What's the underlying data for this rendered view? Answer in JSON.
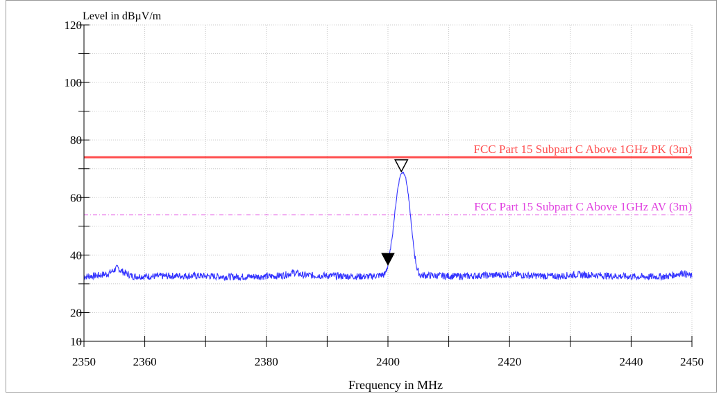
{
  "chart_data": {
    "type": "line",
    "title": "",
    "ylabel": "Level in dBµV/m",
    "xlabel": "Frequency in MHz",
    "xlim": [
      2350,
      2450
    ],
    "ylim": [
      10,
      120
    ],
    "x_ticks_major": [
      2350,
      2360,
      2380,
      2400,
      2420,
      2440,
      2450
    ],
    "x_ticks_minor": [
      2370,
      2390,
      2410,
      2430
    ],
    "y_ticks_labeled": [
      10,
      20,
      40,
      60,
      80,
      100,
      120
    ],
    "y_ticks_unlabeled": [
      30,
      50,
      70,
      90,
      110
    ],
    "grid": true,
    "limit_lines": [
      {
        "name": "FCC Part 15 Subpart C Above 1GHz  PK (3m)",
        "value": 74,
        "color": "#ff4d4d",
        "style": "solid"
      },
      {
        "name": "FCC Part 15 Subpart C Above 1GHz  AV (3m)",
        "value": 54,
        "color": "#e040e0",
        "style": "dash-dot"
      }
    ],
    "series": [
      {
        "color": "#3333ff",
        "points": [
          [
            2350,
            32.5
          ],
          [
            2352,
            32.8
          ],
          [
            2354,
            33.5
          ],
          [
            2355.5,
            35.5
          ],
          [
            2356.5,
            34
          ],
          [
            2358,
            32.6
          ],
          [
            2362,
            32.6
          ],
          [
            2366,
            32.8
          ],
          [
            2370,
            32.7
          ],
          [
            2374,
            32.4
          ],
          [
            2378,
            32.5
          ],
          [
            2381,
            32.6
          ],
          [
            2383,
            33.0
          ],
          [
            2384.5,
            34.0
          ],
          [
            2386,
            33.0
          ],
          [
            2390,
            32.8
          ],
          [
            2394,
            32.6
          ],
          [
            2397,
            32.5
          ],
          [
            2399.5,
            33.2
          ],
          [
            2400.0,
            36.5
          ],
          [
            2400.4,
            42.0
          ],
          [
            2400.8,
            48.0
          ],
          [
            2401.2,
            56.0
          ],
          [
            2401.6,
            63.0
          ],
          [
            2402.0,
            67.5
          ],
          [
            2402.4,
            69.0
          ],
          [
            2402.8,
            68.0
          ],
          [
            2403.2,
            63.5
          ],
          [
            2403.6,
            56.0
          ],
          [
            2404.0,
            47.0
          ],
          [
            2404.4,
            40.0
          ],
          [
            2404.8,
            35.0
          ],
          [
            2405.3,
            33.0
          ],
          [
            2408,
            32.8
          ],
          [
            2412,
            32.6
          ],
          [
            2416,
            32.9
          ],
          [
            2420,
            33.2
          ],
          [
            2424,
            32.8
          ],
          [
            2428,
            32.6
          ],
          [
            2431,
            33.2
          ],
          [
            2434,
            33.0
          ],
          [
            2438,
            32.6
          ],
          [
            2442,
            32.4
          ],
          [
            2446,
            32.6
          ],
          [
            2448.5,
            33.8
          ],
          [
            2450,
            32.5
          ]
        ]
      }
    ],
    "markers": [
      {
        "x": 2402.2,
        "y": 69.0,
        "style": "open-triangle-down"
      },
      {
        "x": 2400.0,
        "y": 36.5,
        "style": "filled-triangle-down"
      }
    ]
  }
}
